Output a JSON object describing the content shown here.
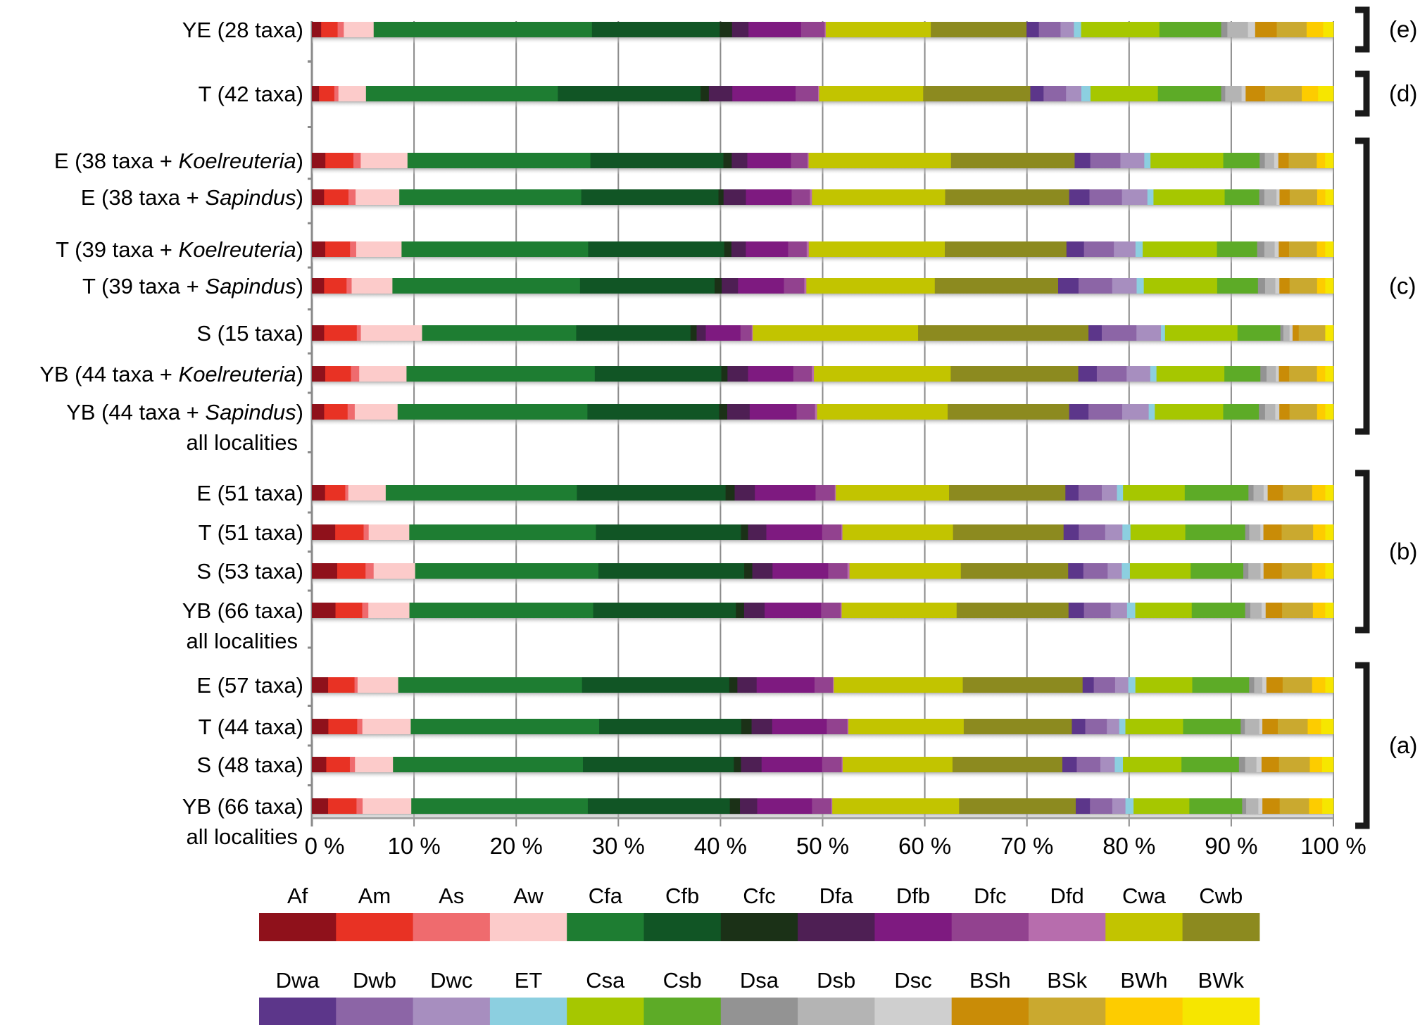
{
  "chart_data": {
    "type": "bar",
    "orientation": "horizontal",
    "stacked": true,
    "normalized": true,
    "title": "",
    "xlabel": "",
    "ylabel": "",
    "xlim": [
      0,
      100
    ],
    "x_ticks": [
      "0 %",
      "10 %",
      "20 %",
      "30 %",
      "40 %",
      "50 %",
      "60 %",
      "70 %",
      "80 %",
      "90 %",
      "100 %"
    ],
    "grid": true,
    "legend_position": "bottom",
    "series_names": [
      "Af",
      "Am",
      "As",
      "Aw",
      "Cfa",
      "Cfb",
      "Cfc",
      "Dfa",
      "Dfb",
      "Dfc",
      "Dfd",
      "Cwa",
      "Cwb",
      "Dwa",
      "Dwb",
      "Dwc",
      "ET",
      "Csa",
      "Csb",
      "Dsa",
      "Dsb",
      "Dsc",
      "BSh",
      "BSk",
      "BWh",
      "BWk"
    ],
    "series_colors": [
      "#8f111b",
      "#e83224",
      "#ef6b6e",
      "#fccbca",
      "#1e7d32",
      "#115525",
      "#1b3117",
      "#4e1f54",
      "#7e1a80",
      "#92428f",
      "#b76dad",
      "#c2c400",
      "#8c8a1f",
      "#5c368a",
      "#8c65a6",
      "#a78ebf",
      "#8ccfe0",
      "#a6c700",
      "#5dab27",
      "#939393",
      "#b4b4b4",
      "#cfcfcf",
      "#c98c07",
      "#caa92f",
      "#fdcc00",
      "#f6e600"
    ],
    "legend_rows": [
      [
        "Af",
        "Am",
        "As",
        "Aw",
        "Cfa",
        "Cfb",
        "Cfc",
        "Dfa",
        "Dfb",
        "Dfc",
        "Dfd",
        "Cwa",
        "Cwb"
      ],
      [
        "Dwa",
        "Dwb",
        "Dwc",
        "ET",
        "Csa",
        "Csb",
        "Dsa",
        "Dsb",
        "Dsc",
        "BSh",
        "BSk",
        "BWh",
        "BWk"
      ]
    ],
    "groups": [
      {
        "label": "(e)",
        "rows": [
          0
        ]
      },
      {
        "label": "(d)",
        "rows": [
          1
        ]
      },
      {
        "label": "(c)",
        "rows": [
          2,
          3,
          4,
          5,
          6,
          7,
          8
        ]
      },
      {
        "label": "(b)",
        "rows": [
          9,
          10,
          11,
          12
        ]
      },
      {
        "label": "(a)",
        "rows": [
          13,
          14,
          15,
          16
        ]
      }
    ],
    "rows": [
      {
        "label": [
          "YE (28 taxa)"
        ],
        "values": [
          0.9,
          1.6,
          0.6,
          2.9,
          21.2,
          12.4,
          1.2,
          1.6,
          5.1,
          2.3,
          0.1,
          10.2,
          9.3,
          1.2,
          2.1,
          1.3,
          0.7,
          7.6,
          6.0,
          0.6,
          2.0,
          0.7,
          2.1,
          2.9,
          1.6,
          1.0
        ]
      },
      {
        "label": [
          "T (42 taxa)"
        ],
        "values": [
          0.7,
          1.5,
          0.4,
          2.7,
          18.8,
          14.0,
          0.8,
          2.3,
          6.2,
          2.2,
          0.1,
          10.2,
          10.5,
          1.3,
          2.2,
          1.5,
          0.9,
          6.6,
          6.2,
          0.4,
          1.6,
          0.4,
          1.9,
          3.6,
          1.6,
          1.5
        ]
      },
      {
        "label": [
          "E (38 taxa + ",
          "Koelreuteria",
          ")"
        ],
        "values": [
          1.3,
          2.7,
          0.7,
          4.5,
          17.6,
          12.8,
          0.8,
          1.5,
          4.2,
          1.6,
          0.1,
          13.7,
          11.9,
          1.5,
          2.9,
          2.3,
          0.6,
          7.0,
          3.5,
          0.5,
          0.9,
          0.4,
          1.0,
          2.7,
          0.8,
          0.8
        ]
      },
      {
        "label": [
          "E (38 taxa + ",
          "Sapindus",
          ")"
        ],
        "values": [
          1.2,
          2.4,
          0.7,
          4.3,
          17.9,
          13.5,
          0.5,
          2.2,
          4.5,
          1.8,
          0.2,
          13.1,
          12.2,
          2.0,
          3.2,
          2.5,
          0.6,
          7.0,
          3.4,
          0.5,
          1.2,
          0.3,
          1.0,
          2.7,
          0.8,
          0.8
        ]
      },
      {
        "label": [
          "T (39 taxa + ",
          "Koelreuteria",
          ")"
        ],
        "values": [
          1.3,
          2.4,
          0.6,
          4.4,
          18.1,
          13.2,
          0.7,
          1.4,
          4.1,
          1.8,
          0.2,
          13.2,
          11.8,
          1.7,
          2.9,
          2.1,
          0.7,
          7.2,
          3.9,
          0.7,
          1.0,
          0.4,
          1.0,
          2.7,
          0.8,
          0.8
        ]
      },
      {
        "label": [
          "T (39 taxa + ",
          "Sapindus",
          ")"
        ],
        "values": [
          1.2,
          2.2,
          0.5,
          4.0,
          18.4,
          13.2,
          0.7,
          1.6,
          4.5,
          2.0,
          0.2,
          12.6,
          12.1,
          2.0,
          3.3,
          2.4,
          0.7,
          7.2,
          4.0,
          0.7,
          1.0,
          0.4,
          1.0,
          2.7,
          0.8,
          0.8
        ]
      },
      {
        "label": [
          "S (15 taxa)"
        ],
        "values": [
          1.2,
          3.2,
          0.4,
          6.0,
          15.1,
          11.2,
          0.6,
          0.9,
          3.4,
          1.1,
          0.1,
          16.2,
          16.7,
          1.3,
          3.4,
          2.4,
          0.4,
          7.1,
          4.2,
          0.3,
          0.6,
          0.3,
          0.6,
          2.6,
          0.0,
          0.8
        ]
      },
      {
        "label": [
          "YB (44 taxa + ",
          "Koelreuteria",
          ")"
        ],
        "values": [
          1.3,
          2.5,
          0.8,
          4.6,
          18.3,
          12.3,
          0.6,
          2.0,
          4.4,
          1.8,
          0.2,
          13.3,
          12.4,
          1.8,
          2.9,
          2.3,
          0.6,
          6.6,
          3.5,
          0.6,
          0.9,
          0.3,
          1.0,
          2.7,
          0.8,
          0.8
        ]
      },
      {
        "label": [
          "YB (44 taxa + ",
          "Sapindus",
          ")",
          "all localities"
        ],
        "values": [
          1.2,
          2.3,
          0.7,
          4.2,
          18.6,
          12.9,
          0.8,
          2.2,
          4.6,
          1.8,
          0.2,
          12.8,
          11.9,
          1.9,
          3.3,
          2.6,
          0.6,
          6.7,
          3.5,
          0.6,
          1.0,
          0.4,
          1.0,
          2.7,
          0.8,
          0.8
        ]
      },
      {
        "label": [
          "E (51 taxa)"
        ],
        "values": [
          1.3,
          2.0,
          0.3,
          3.7,
          18.9,
          14.7,
          0.9,
          2.0,
          6.0,
          1.9,
          0.1,
          11.2,
          11.5,
          1.3,
          2.3,
          1.5,
          0.6,
          6.1,
          6.3,
          0.5,
          1.0,
          0.4,
          1.5,
          2.9,
          1.3,
          0.8
        ]
      },
      {
        "label": [
          "T (51 taxa)"
        ],
        "values": [
          2.3,
          2.8,
          0.5,
          4.0,
          18.4,
          14.3,
          0.7,
          1.8,
          5.5,
          1.9,
          0.1,
          10.9,
          10.9,
          1.5,
          2.6,
          1.7,
          0.8,
          5.4,
          5.9,
          0.4,
          1.1,
          0.3,
          1.8,
          3.1,
          1.2,
          0.8
        ]
      },
      {
        "label": [
          "S (53 taxa)"
        ],
        "values": [
          2.5,
          2.8,
          0.8,
          4.1,
          18.1,
          14.4,
          0.8,
          2.0,
          5.5,
          1.9,
          0.2,
          11.0,
          10.6,
          1.5,
          2.4,
          1.4,
          0.8,
          6.0,
          5.2,
          0.5,
          1.2,
          0.3,
          1.8,
          3.0,
          1.3,
          0.8
        ]
      },
      {
        "label": [
          "YB (66 taxa)",
          "all localities"
        ],
        "values": [
          2.3,
          2.6,
          0.6,
          4.0,
          17.9,
          13.9,
          0.8,
          2.0,
          5.5,
          1.9,
          0.1,
          11.2,
          10.9,
          1.5,
          2.6,
          1.6,
          0.8,
          5.5,
          5.2,
          0.5,
          1.1,
          0.4,
          1.6,
          3.0,
          1.2,
          0.8
        ]
      },
      {
        "label": [
          "E (57 taxa)"
        ],
        "values": [
          1.6,
          2.6,
          0.3,
          4.0,
          18.1,
          14.5,
          0.8,
          1.9,
          5.7,
          1.8,
          0.1,
          12.7,
          11.8,
          1.1,
          2.1,
          1.3,
          0.7,
          5.6,
          5.6,
          0.5,
          0.8,
          0.4,
          1.6,
          2.9,
          1.3,
          0.8
        ]
      },
      {
        "label": [
          "T (44 taxa)"
        ],
        "values": [
          1.6,
          2.8,
          0.5,
          4.7,
          18.3,
          13.8,
          1.0,
          2.0,
          5.3,
          2.0,
          0.1,
          11.2,
          10.5,
          1.3,
          2.1,
          1.2,
          0.6,
          5.6,
          5.6,
          0.4,
          1.4,
          0.3,
          1.5,
          2.9,
          1.3,
          1.2
        ]
      },
      {
        "label": [
          "S (48 taxa)"
        ],
        "values": [
          1.4,
          2.3,
          0.5,
          3.7,
          18.5,
          14.7,
          0.7,
          2.0,
          5.9,
          1.9,
          0.1,
          10.7,
          10.7,
          1.4,
          2.3,
          1.4,
          0.8,
          5.7,
          5.6,
          0.6,
          1.1,
          0.5,
          1.7,
          3.0,
          1.2,
          1.1
        ]
      },
      {
        "label": [
          "YB (66 taxa)",
          "all localities"
        ],
        "values": [
          1.6,
          2.8,
          0.6,
          4.8,
          17.4,
          14.0,
          1.0,
          1.7,
          5.4,
          1.9,
          0.1,
          12.5,
          11.5,
          1.4,
          2.2,
          1.3,
          0.8,
          5.5,
          5.2,
          0.4,
          1.2,
          0.4,
          1.7,
          2.9,
          1.3,
          1.1
        ]
      }
    ]
  }
}
